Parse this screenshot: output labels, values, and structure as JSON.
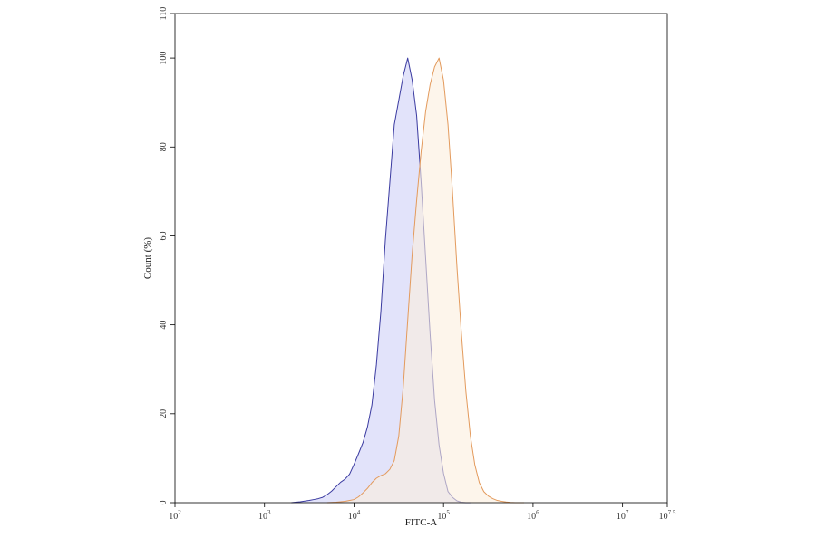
{
  "chart_data": {
    "type": "area",
    "title": "",
    "xlabel": "FITC-A",
    "ylabel": "Count (%)",
    "x_scale": "log",
    "xlim": [
      100,
      31622776.6
    ],
    "ylim": [
      0,
      110
    ],
    "grid": false,
    "legend": "none",
    "x_ticks": [
      {
        "value": 100,
        "base": "10",
        "exp": "2"
      },
      {
        "value": 1000,
        "base": "10",
        "exp": "3"
      },
      {
        "value": 10000,
        "base": "10",
        "exp": "4"
      },
      {
        "value": 100000,
        "base": "10",
        "exp": "5"
      },
      {
        "value": 1000000,
        "base": "10",
        "exp": "6"
      },
      {
        "value": 10000000,
        "base": "10",
        "exp": "7"
      },
      {
        "value": 31622776.6,
        "base": "10",
        "exp": "7.5"
      }
    ],
    "y_ticks": [
      {
        "value": 0,
        "label": "0"
      },
      {
        "value": 20,
        "label": "20"
      },
      {
        "value": 40,
        "label": "40"
      },
      {
        "value": 60,
        "label": "60"
      },
      {
        "value": 80,
        "label": "80"
      },
      {
        "value": 100,
        "label": "100"
      },
      {
        "value": 110,
        "label": "110"
      }
    ],
    "series": [
      {
        "color": "#3a3aa0",
        "fill": "#cfd0f6",
        "x": [
          1995,
          2512,
          3162,
          3548,
          3981,
          4467,
          5012,
          5623,
          6310,
          7079,
          7943,
          8913,
          10000,
          11220,
          12589,
          14125,
          15849,
          17783,
          19953,
          22387,
          25119,
          28184,
          31623,
          35481,
          39811,
          44668,
          50119,
          56234,
          63096,
          70795,
          79433,
          89125,
          100000,
          112202,
          125893,
          141254,
          158489,
          177828,
          199526
        ],
        "y": [
          0,
          0.2,
          0.5,
          0.7,
          0.9,
          1.2,
          1.8,
          2.6,
          3.6,
          4.6,
          5.3,
          6.4,
          8.6,
          11,
          13.5,
          17,
          22,
          31,
          43,
          59,
          72,
          85,
          90.5,
          96,
          100,
          95,
          87,
          72,
          55,
          38,
          23,
          13,
          6.6,
          2.5,
          1.2,
          0.4,
          0.1,
          0,
          0
        ]
      },
      {
        "color": "#e39a5c",
        "fill": "#fbeede",
        "x": [
          5012,
          6310,
          7943,
          10000,
          11220,
          12589,
          14125,
          15849,
          17783,
          19953,
          22387,
          25119,
          28184,
          31623,
          35481,
          39811,
          44668,
          50119,
          56234,
          63096,
          70795,
          79433,
          89125,
          100000,
          112202,
          125893,
          141254,
          158489,
          177828,
          199526,
          223872,
          251189,
          281838,
          316228,
          354813,
          398107,
          446684,
          501187,
          562341,
          630957,
          794328
        ],
        "y": [
          0,
          0.1,
          0.3,
          0.7,
          1.3,
          2.2,
          3.2,
          4.5,
          5.5,
          6.1,
          6.5,
          7.5,
          9.5,
          15,
          26,
          41,
          56,
          68,
          79,
          88,
          94,
          98,
          100,
          95,
          85,
          70,
          53,
          38,
          25,
          15,
          8.5,
          4.5,
          2.5,
          1.5,
          0.9,
          0.5,
          0.3,
          0.15,
          0.05,
          0,
          0
        ]
      }
    ]
  }
}
